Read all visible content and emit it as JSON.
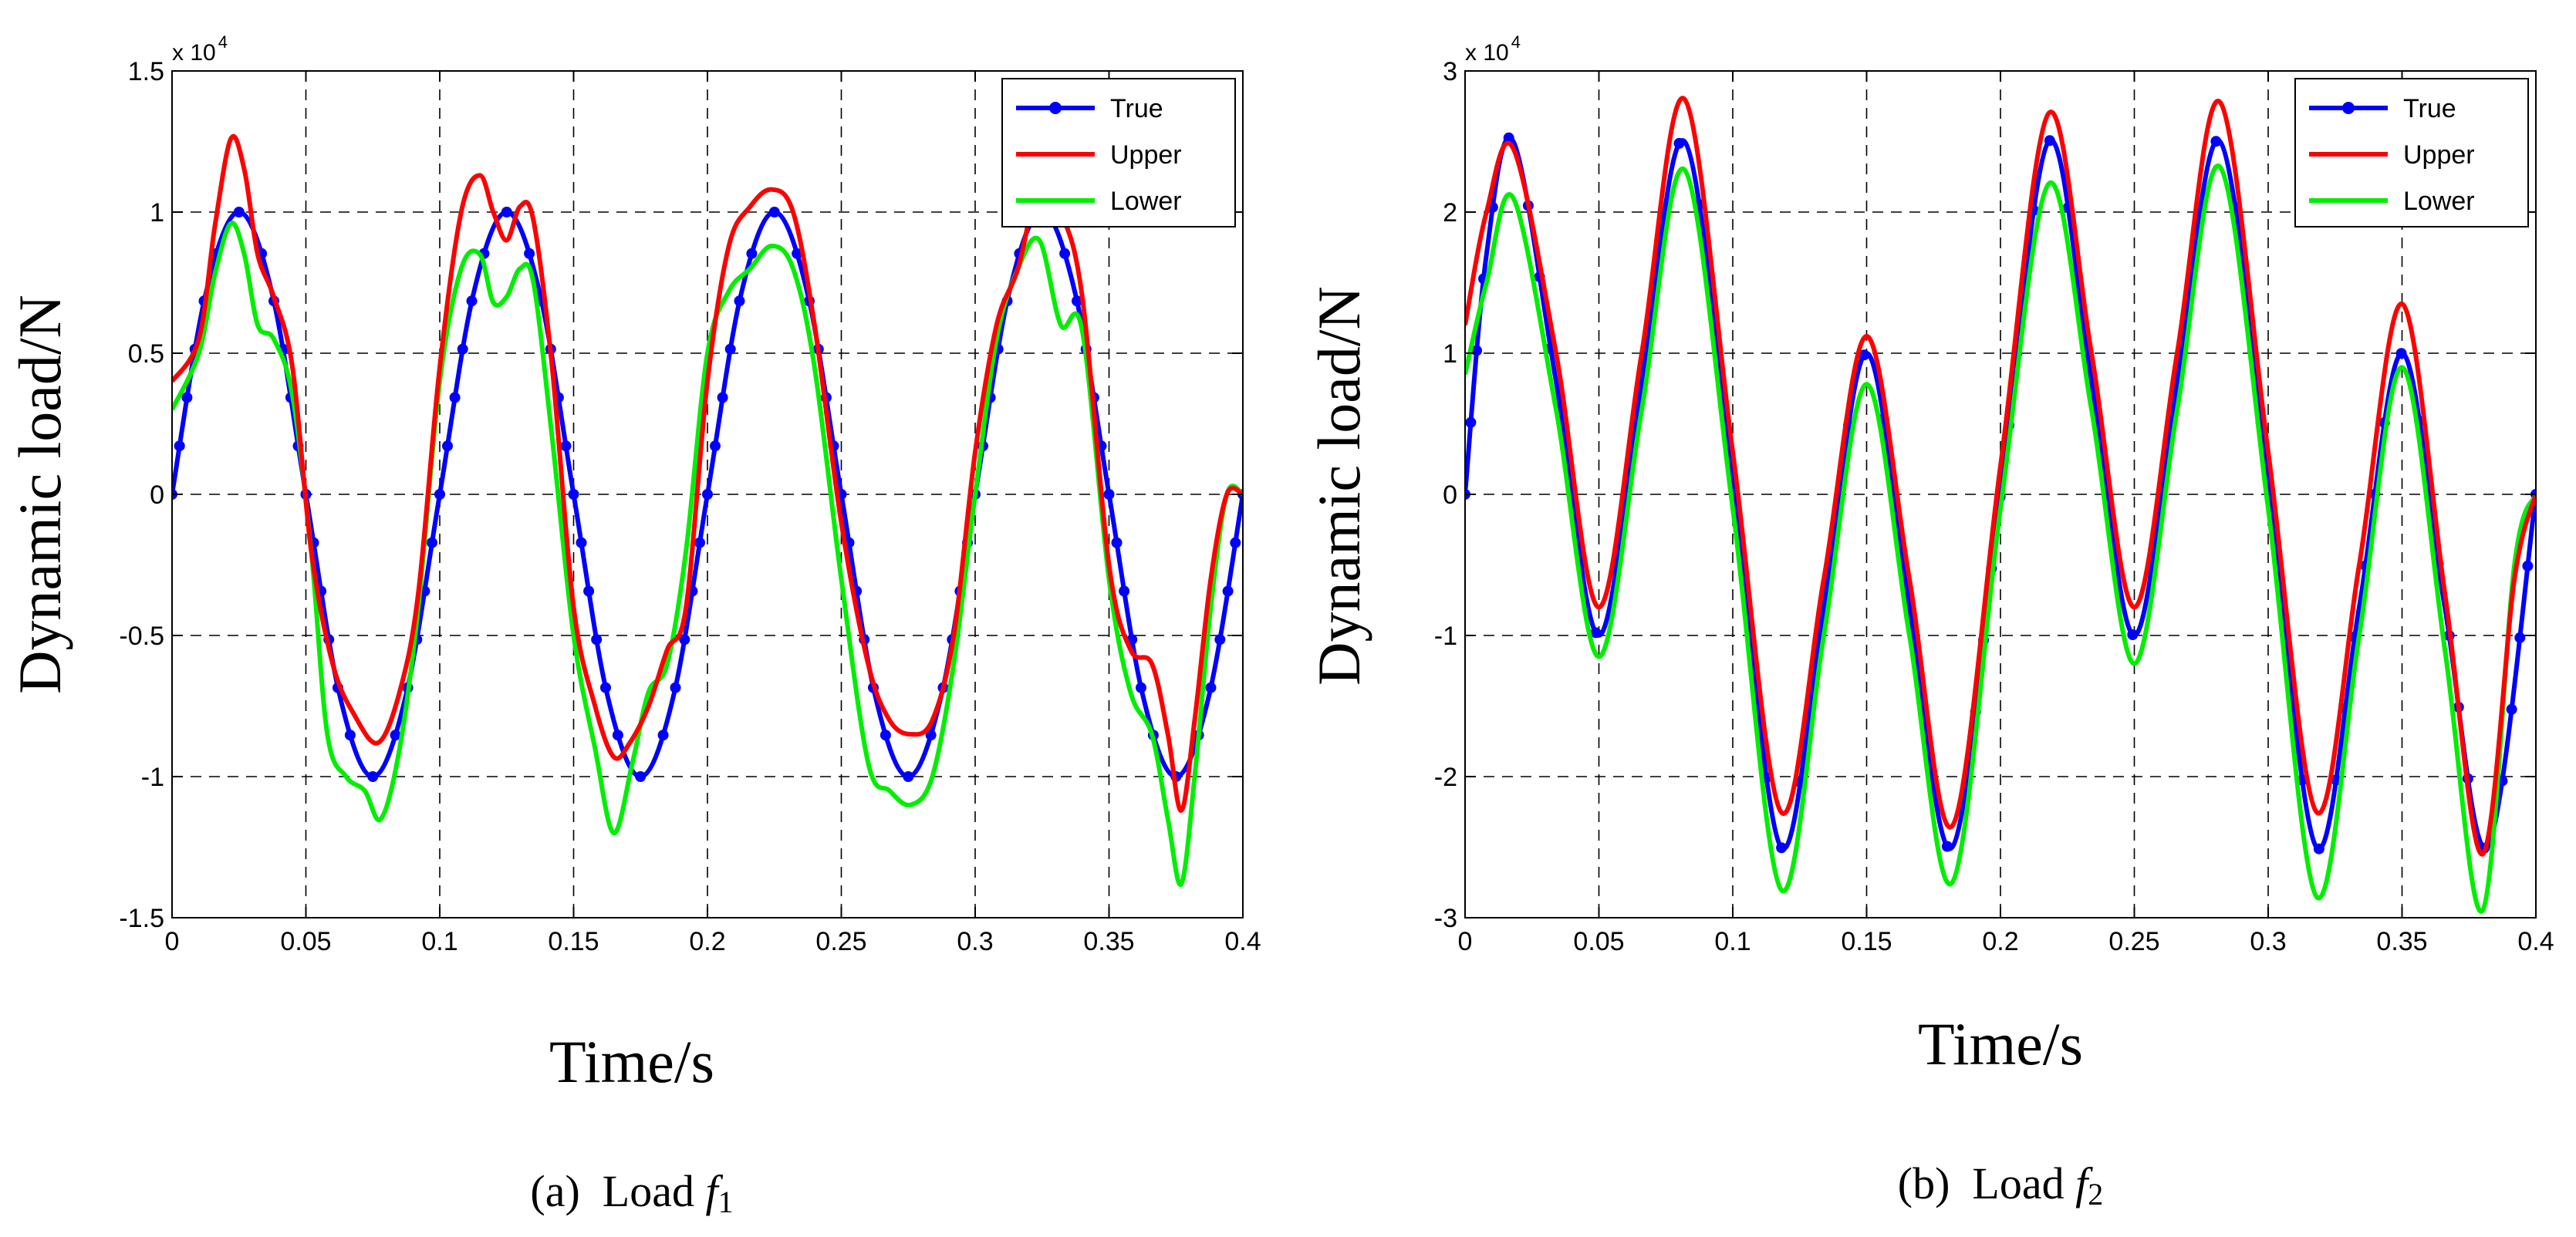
{
  "chart_data": [
    {
      "type": "line",
      "caption": "(a) Load f1",
      "caption_prefix": "(a)",
      "caption_word": "Load",
      "caption_var": "f",
      "caption_sub": "1",
      "xlabel": "Time/s",
      "ylabel": "Dynamic load/N",
      "exponent_base": "x 10",
      "exponent_power": "4",
      "xlim": [
        0,
        0.4
      ],
      "ylim": [
        -1.5,
        1.5
      ],
      "xticks": [
        0,
        0.05,
        0.1,
        0.15,
        0.2,
        0.25,
        0.3,
        0.35,
        0.4
      ],
      "xtick_labels": [
        "0",
        "0.05",
        "0.1",
        "0.15",
        "0.2",
        "0.25",
        "0.3",
        "0.35",
        "0.4"
      ],
      "yticks": [
        -1.5,
        -1,
        -0.5,
        0,
        0.5,
        1,
        1.5
      ],
      "ytick_labels": [
        "-1.5",
        "-1",
        "-0.5",
        "0",
        "0.5",
        "1",
        "1.5"
      ],
      "grid": true,
      "legend_position": "top-right",
      "series": [
        {
          "name": "True",
          "color": "#0000ff",
          "marker": "circle",
          "x": [
            0,
            0.0125,
            0.025,
            0.0375,
            0.05,
            0.0625,
            0.075,
            0.0875,
            0.1,
            0.1125,
            0.125,
            0.1375,
            0.15,
            0.1625,
            0.175,
            0.1875,
            0.2,
            0.2125,
            0.225,
            0.2375,
            0.25,
            0.2625,
            0.275,
            0.2875,
            0.3,
            0.3125,
            0.325,
            0.3375,
            0.35,
            0.3625,
            0.375,
            0.3875,
            0.4
          ],
          "y": [
            0,
            0.707,
            1.0,
            0.707,
            0,
            -0.707,
            -1.0,
            -0.707,
            0,
            0.707,
            1.0,
            0.707,
            0,
            -0.707,
            -1.0,
            -0.707,
            0,
            0.707,
            1.0,
            0.707,
            0,
            -0.707,
            -1.0,
            -0.707,
            0,
            0.707,
            1.0,
            0.707,
            0,
            -0.707,
            -1.0,
            -0.707,
            0
          ]
        },
        {
          "name": "Upper",
          "color": "#ff0000",
          "x": [
            0,
            0.01,
            0.016,
            0.022,
            0.027,
            0.032,
            0.038,
            0.045,
            0.052,
            0.06,
            0.068,
            0.077,
            0.085,
            0.092,
            0.1,
            0.108,
            0.115,
            0.12,
            0.125,
            0.13,
            0.135,
            0.142,
            0.15,
            0.158,
            0.165,
            0.171,
            0.178,
            0.185,
            0.192,
            0.2,
            0.208,
            0.216,
            0.224,
            0.232,
            0.24,
            0.25,
            0.26,
            0.268,
            0.276,
            0.284,
            0.292,
            0.3,
            0.308,
            0.316,
            0.324,
            0.332,
            0.34,
            0.35,
            0.358,
            0.366,
            0.372,
            0.377,
            0.382,
            0.388,
            0.394,
            0.4
          ],
          "y": [
            0.4,
            0.55,
            0.95,
            1.26,
            1.15,
            0.85,
            0.7,
            0.45,
            -0.2,
            -0.6,
            -0.78,
            -0.88,
            -0.7,
            -0.35,
            0.45,
            1.0,
            1.13,
            1.0,
            0.9,
            1.02,
            0.97,
            0.45,
            -0.4,
            -0.75,
            -0.93,
            -0.88,
            -0.75,
            -0.55,
            -0.4,
            0.4,
            0.88,
            1.02,
            1.08,
            1.0,
            0.6,
            -0.1,
            -0.6,
            -0.8,
            -0.85,
            -0.8,
            -0.5,
            0.15,
            0.6,
            0.8,
            1.1,
            1.0,
            0.7,
            -0.25,
            -0.55,
            -0.6,
            -0.85,
            -1.12,
            -0.8,
            -0.3,
            0.0,
            0.0
          ]
        },
        {
          "name": "Lower",
          "color": "#00ee00",
          "x": [
            0,
            0.01,
            0.016,
            0.022,
            0.027,
            0.032,
            0.038,
            0.045,
            0.052,
            0.058,
            0.065,
            0.072,
            0.078,
            0.085,
            0.092,
            0.1,
            0.108,
            0.115,
            0.12,
            0.125,
            0.13,
            0.135,
            0.142,
            0.15,
            0.158,
            0.165,
            0.172,
            0.178,
            0.185,
            0.192,
            0.2,
            0.208,
            0.216,
            0.224,
            0.232,
            0.24,
            0.25,
            0.26,
            0.268,
            0.276,
            0.284,
            0.292,
            0.3,
            0.308,
            0.316,
            0.324,
            0.332,
            0.34,
            0.35,
            0.358,
            0.366,
            0.372,
            0.377,
            0.382,
            0.388,
            0.394,
            0.4
          ],
          "y": [
            0.3,
            0.5,
            0.78,
            0.96,
            0.85,
            0.6,
            0.55,
            0.35,
            -0.2,
            -0.85,
            -1.0,
            -1.05,
            -1.15,
            -0.9,
            -0.4,
            0.4,
            0.8,
            0.85,
            0.68,
            0.7,
            0.8,
            0.75,
            0.2,
            -0.5,
            -0.9,
            -1.2,
            -0.95,
            -0.7,
            -0.6,
            -0.2,
            0.5,
            0.72,
            0.8,
            0.88,
            0.8,
            0.45,
            -0.3,
            -0.95,
            -1.05,
            -1.1,
            -1.0,
            -0.6,
            0.0,
            0.55,
            0.8,
            0.9,
            0.6,
            0.58,
            -0.3,
            -0.7,
            -0.85,
            -1.15,
            -1.38,
            -1.0,
            -0.4,
            0.0,
            0.0
          ]
        }
      ]
    },
    {
      "type": "line",
      "caption": "(b) Load f2",
      "caption_prefix": "(b)",
      "caption_word": "Load",
      "caption_var": "f",
      "caption_sub": "2",
      "xlabel": "Time/s",
      "ylabel": "Dynamic load/N",
      "exponent_base": "x 10",
      "exponent_power": "4",
      "xlim": [
        0,
        0.4
      ],
      "ylim": [
        -3,
        3
      ],
      "xticks": [
        0,
        0.05,
        0.1,
        0.15,
        0.2,
        0.25,
        0.3,
        0.35,
        0.4
      ],
      "xtick_labels": [
        "0",
        "0.05",
        "0.1",
        "0.15",
        "0.2",
        "0.25",
        "0.3",
        "0.35",
        "0.4"
      ],
      "yticks": [
        -3,
        -2,
        -1,
        0,
        1,
        2,
        3
      ],
      "ytick_labels": [
        "-3",
        "-2",
        "-1",
        "0",
        "1",
        "2",
        "3"
      ],
      "grid": true,
      "legend_position": "top-right",
      "series": [
        {
          "name": "True",
          "color": "#0000ff",
          "marker": "circle",
          "x": [
            0,
            0.008,
            0.018,
            0.034,
            0.05,
            0.066,
            0.082,
            0.1,
            0.118,
            0.134,
            0.15,
            0.166,
            0.182,
            0.2,
            0.218,
            0.234,
            0.25,
            0.266,
            0.282,
            0.3,
            0.318,
            0.334,
            0.35,
            0.366,
            0.382,
            0.4
          ],
          "y": [
            0,
            1.7,
            2.5,
            0.8,
            -1.0,
            0.8,
            2.5,
            0.1,
            -2.5,
            -0.8,
            1.0,
            -0.8,
            -2.5,
            0,
            2.5,
            0.8,
            -1.0,
            0.8,
            2.5,
            0.1,
            -2.5,
            -0.8,
            1.0,
            -0.8,
            -2.5,
            0
          ]
        },
        {
          "name": "Upper",
          "color": "#ff0000",
          "x": [
            0,
            0.008,
            0.018,
            0.034,
            0.05,
            0.066,
            0.082,
            0.1,
            0.118,
            0.134,
            0.15,
            0.166,
            0.182,
            0.2,
            0.218,
            0.234,
            0.25,
            0.266,
            0.282,
            0.3,
            0.318,
            0.334,
            0.35,
            0.366,
            0.38,
            0.392,
            0.4
          ],
          "y": [
            1.2,
            2.0,
            2.45,
            1.0,
            -0.8,
            1.0,
            2.8,
            0.3,
            -2.25,
            -0.6,
            1.12,
            -0.6,
            -2.35,
            0.2,
            2.7,
            1.0,
            -0.8,
            1.0,
            2.78,
            0.3,
            -2.25,
            -0.5,
            1.35,
            -0.7,
            -2.55,
            -0.6,
            0
          ]
        },
        {
          "name": "Lower",
          "color": "#00ee00",
          "x": [
            0,
            0.008,
            0.018,
            0.034,
            0.05,
            0.066,
            0.082,
            0.1,
            0.118,
            0.134,
            0.15,
            0.166,
            0.182,
            0.2,
            0.218,
            0.234,
            0.25,
            0.266,
            0.282,
            0.3,
            0.318,
            0.334,
            0.35,
            0.366,
            0.38,
            0.392,
            0.4
          ],
          "y": [
            0.85,
            1.5,
            2.1,
            0.6,
            -1.15,
            0.6,
            2.3,
            -0.1,
            -2.8,
            -1.0,
            0.78,
            -1.0,
            -2.75,
            -0.1,
            2.2,
            0.6,
            -1.2,
            0.6,
            2.32,
            -0.1,
            -2.85,
            -1.0,
            0.9,
            -1.1,
            -2.95,
            -0.5,
            0
          ]
        }
      ]
    }
  ]
}
